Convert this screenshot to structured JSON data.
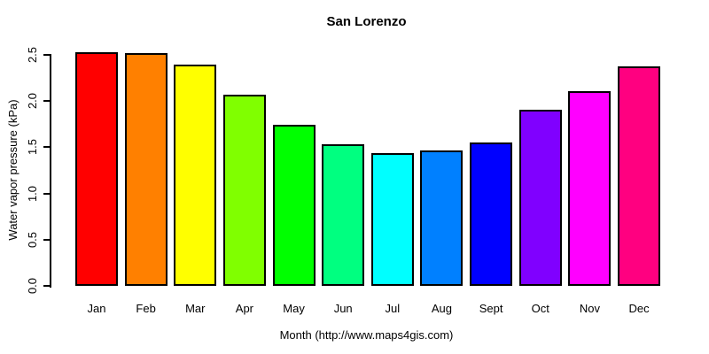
{
  "chart_data": {
    "type": "bar",
    "title": "San Lorenzo",
    "xlabel": "Month (http://www.maps4gis.com)",
    "ylabel": "Water vapor pressure (kPa)",
    "categories": [
      "Jan",
      "Feb",
      "Mar",
      "Apr",
      "May",
      "Jun",
      "Jul",
      "Aug",
      "Sept",
      "Oct",
      "Nov",
      "Dec"
    ],
    "values": [
      2.53,
      2.52,
      2.39,
      2.07,
      1.74,
      1.53,
      1.44,
      1.47,
      1.55,
      1.91,
      2.11,
      2.38
    ],
    "bar_colors": [
      "#FF0000",
      "#FF8000",
      "#FFFF00",
      "#80FF00",
      "#00FF00",
      "#00FF80",
      "#00FFFF",
      "#0080FF",
      "#0000FF",
      "#8000FF",
      "#FF00FF",
      "#FF0080"
    ],
    "bar_border_color": "#000000",
    "ylim": [
      0,
      2.5
    ],
    "ytick_labels": [
      "0.0",
      "0.5",
      "1.0",
      "1.5",
      "2.0",
      "2.5"
    ],
    "grid": false,
    "legend": "none"
  }
}
